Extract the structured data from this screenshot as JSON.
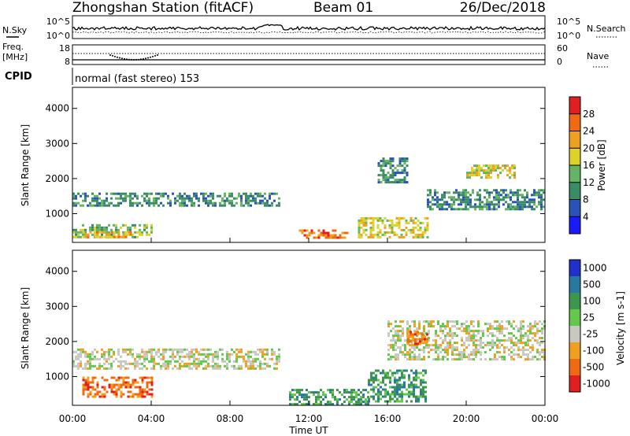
{
  "header": {
    "station_title": "Zhongshan Station (fitACF)",
    "beam_label": "Beam 01",
    "date_label": "26/Dec/2018"
  },
  "noise_panel": {
    "left_label": "N.Sky",
    "right_label": "N.Search",
    "tick_top": "10^5",
    "tick_bottom": "10^0"
  },
  "freq_panel": {
    "left_label_line1": "Freq.",
    "left_label_line2": "[MHz]",
    "right_label": "Nave",
    "left_tick_top": "18",
    "left_tick_bottom": "8",
    "right_tick_top": "60",
    "right_tick_bottom": "0"
  },
  "cpid": {
    "label": "CPID",
    "mode_text": "normal (fast stereo) 153"
  },
  "power_panel": {
    "ylabel": "Slant Range [km]",
    "yticks": [
      "1000",
      "2000",
      "3000",
      "4000"
    ],
    "colorbar_label": "Power [dB]",
    "colorbar_ticks": [
      "4",
      "8",
      "12",
      "16",
      "20",
      "24",
      "28"
    ],
    "colors": [
      "#1a1aff",
      "#2a52b8",
      "#3a8c64",
      "#64b464",
      "#dcd228",
      "#f0a020",
      "#f06a14",
      "#e02020"
    ]
  },
  "velocity_panel": {
    "ylabel": "Slant Range [km]",
    "yticks": [
      "1000",
      "2000",
      "3000",
      "4000"
    ],
    "colorbar_label": "Velocity [m s-1]",
    "colorbar_ticks": [
      "1000",
      "500",
      "100",
      "25",
      "-25",
      "-100",
      "-500",
      "-1000"
    ],
    "colors": [
      "#2030c8",
      "#2878a0",
      "#3c9650",
      "#64c84a",
      "#c8c8c0",
      "#f0a020",
      "#f06a14",
      "#e02020"
    ]
  },
  "x_axis": {
    "label": "Time UT",
    "ticks": [
      "00:00",
      "04:00",
      "08:00",
      "12:00",
      "16:00",
      "20:00",
      "00:00"
    ]
  },
  "chart_data": {
    "type": "heatmap",
    "title": "Zhongshan Station (fitACF) Beam 01 26/Dec/2018",
    "xlabel": "Time UT",
    "ylabel": "Slant Range [km]",
    "xlim": [
      0,
      24
    ],
    "ylim": [
      180,
      4600
    ],
    "noise_log_range": [
      0,
      5
    ],
    "freq_range_mhz": [
      8,
      18
    ],
    "nave_range": [
      0,
      60
    ],
    "power_colorbar_range_db": [
      0,
      32
    ],
    "velocity_colorbar_levels": [
      -1000,
      -500,
      -100,
      -25,
      25,
      100,
      500,
      1000
    ],
    "power_regions": [
      {
        "t0": 0.0,
        "t1": 10.5,
        "r0": 1200,
        "r1": 1600,
        "level": 2
      },
      {
        "t0": 0.0,
        "t1": 4.0,
        "r0": 300,
        "r1": 700,
        "level": 3
      },
      {
        "t0": 0.5,
        "t1": 3.0,
        "r0": 300,
        "r1": 500,
        "level": 5
      },
      {
        "t0": 11.5,
        "t1": 14.0,
        "r0": 300,
        "r1": 550,
        "level": 6
      },
      {
        "t0": 14.5,
        "t1": 18.0,
        "r0": 300,
        "r1": 900,
        "level": 4
      },
      {
        "t0": 15.5,
        "t1": 17.0,
        "r0": 1900,
        "r1": 2600,
        "level": 2
      },
      {
        "t0": 20.0,
        "t1": 22.5,
        "r0": 2000,
        "r1": 2400,
        "level": 4
      },
      {
        "t0": 18.0,
        "t1": 24.0,
        "r0": 1100,
        "r1": 1700,
        "level": 2
      }
    ],
    "velocity_regions": [
      {
        "t0": 0.0,
        "t1": 10.5,
        "r0": 1200,
        "r1": 1800,
        "level": 4
      },
      {
        "t0": 0.5,
        "t1": 4.0,
        "r0": 400,
        "r1": 1000,
        "level": 6
      },
      {
        "t0": 11.0,
        "t1": 15.0,
        "r0": 200,
        "r1": 650,
        "level": 2
      },
      {
        "t0": 15.0,
        "t1": 18.0,
        "r0": 300,
        "r1": 1200,
        "level": 2
      },
      {
        "t0": 16.0,
        "t1": 24.0,
        "r0": 1500,
        "r1": 2600,
        "level": 4
      },
      {
        "t0": 17.0,
        "t1": 18.0,
        "r0": 1900,
        "r1": 2300,
        "level": 6
      }
    ]
  }
}
